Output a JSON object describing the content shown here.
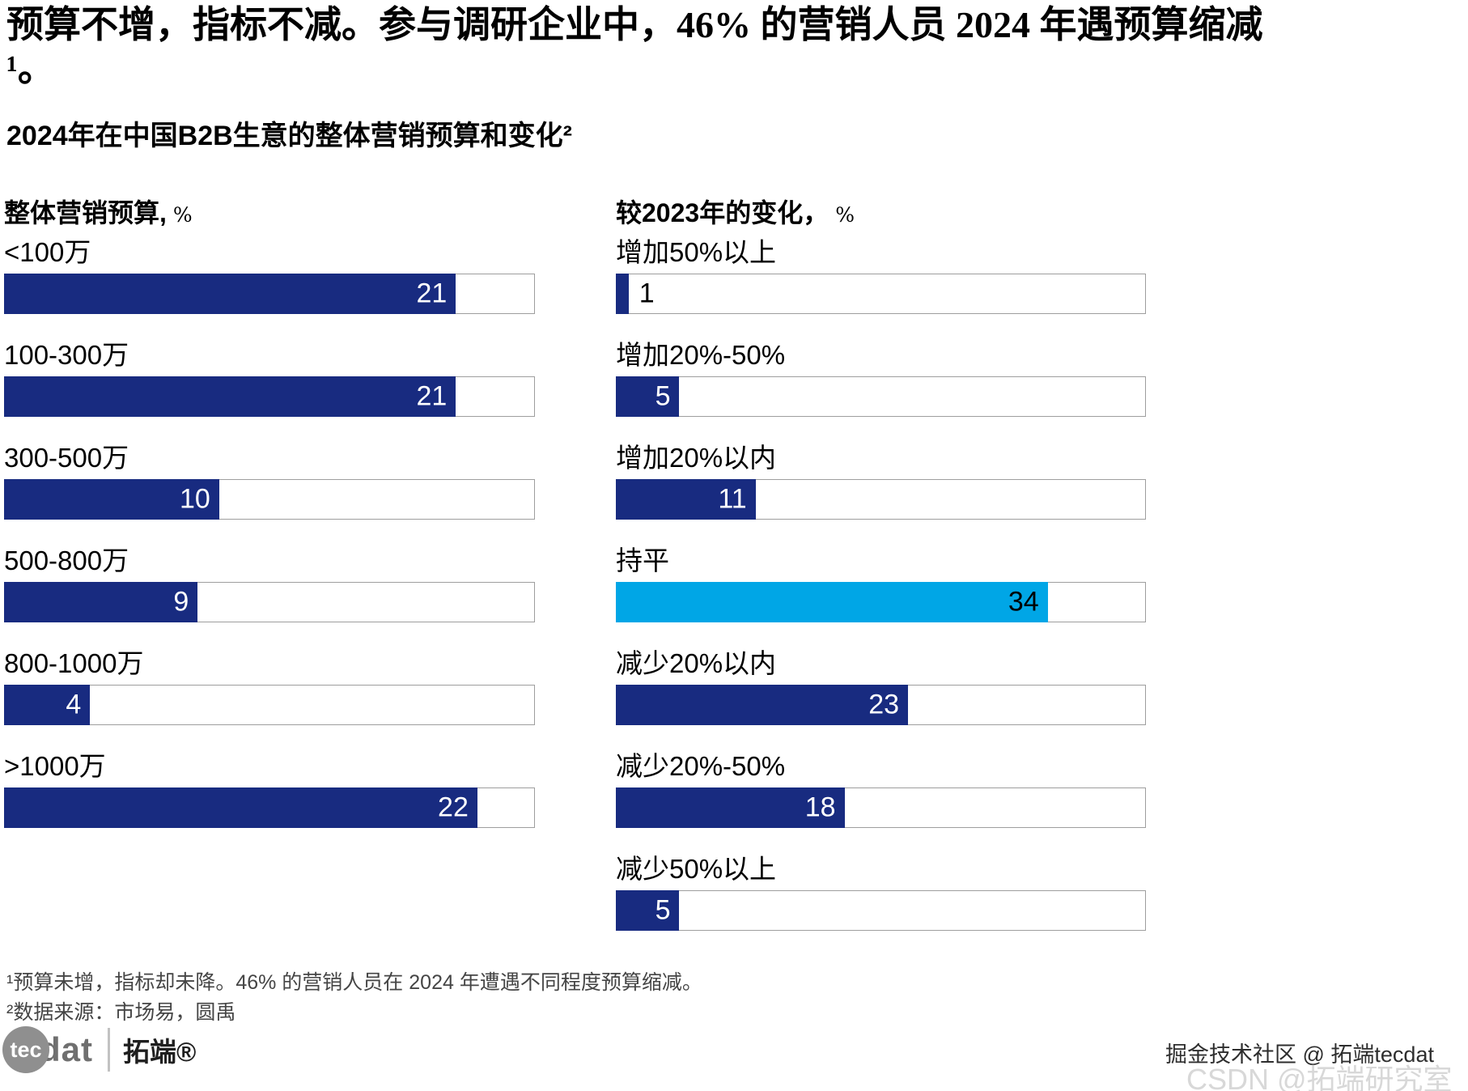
{
  "title": "预算不增，指标不减。参与调研企业中，46% 的营销人员 2024 年遇预算缩减¹。",
  "subtitle": "2024年在中国B2B生意的整体营销预算和变化²",
  "colors": {
    "bar": "#182b80",
    "highlight": "#00a6e6",
    "value_inside": "#ffffff",
    "value_on_highlight": "#000000",
    "value_outside": "#000000",
    "track_border": "#9e9e9e"
  },
  "chart_data": [
    {
      "type": "bar",
      "orientation": "horizontal",
      "title": "整体营销预算,",
      "unit_label": "%",
      "categories": [
        "<100万",
        "100-300万",
        "300-500万",
        "500-800万",
        "800-1000万",
        ">1000万"
      ],
      "values": [
        21,
        21,
        10,
        9,
        4,
        22
      ],
      "axis_max": 24.6,
      "bar_color": "#182b80",
      "grid": "off",
      "value_label_position": "inside-right"
    },
    {
      "type": "bar",
      "orientation": "horizontal",
      "title": "较2023年的变化，",
      "unit_label": "%",
      "categories": [
        "增加50%以上",
        "增加20%-50%",
        "增加20%以内",
        "持平",
        "减少20%以内",
        "减少20%-50%",
        "减少50%以上"
      ],
      "values": [
        1,
        5,
        11,
        34,
        23,
        18,
        5
      ],
      "axis_max": 41.6,
      "bar_color": "#182b80",
      "highlight_index": 3,
      "highlight_color": "#00a6e6",
      "outside_value_indices": [
        0
      ],
      "grid": "off",
      "value_label_position": "inside-right"
    }
  ],
  "footnotes": [
    "¹预算未增，指标却未降。46% 的营销人员在 2024 年遭遇不同程度预算缩减。",
    "²数据来源：市场易，圆禹"
  ],
  "logo": {
    "circle_text": "tec",
    "wordmark": "dat",
    "brand": "拓端®"
  },
  "watermarks": {
    "primary": "掘金技术社区 @ 拓端tecdat",
    "secondary": "CSDN @拓端研究室"
  }
}
